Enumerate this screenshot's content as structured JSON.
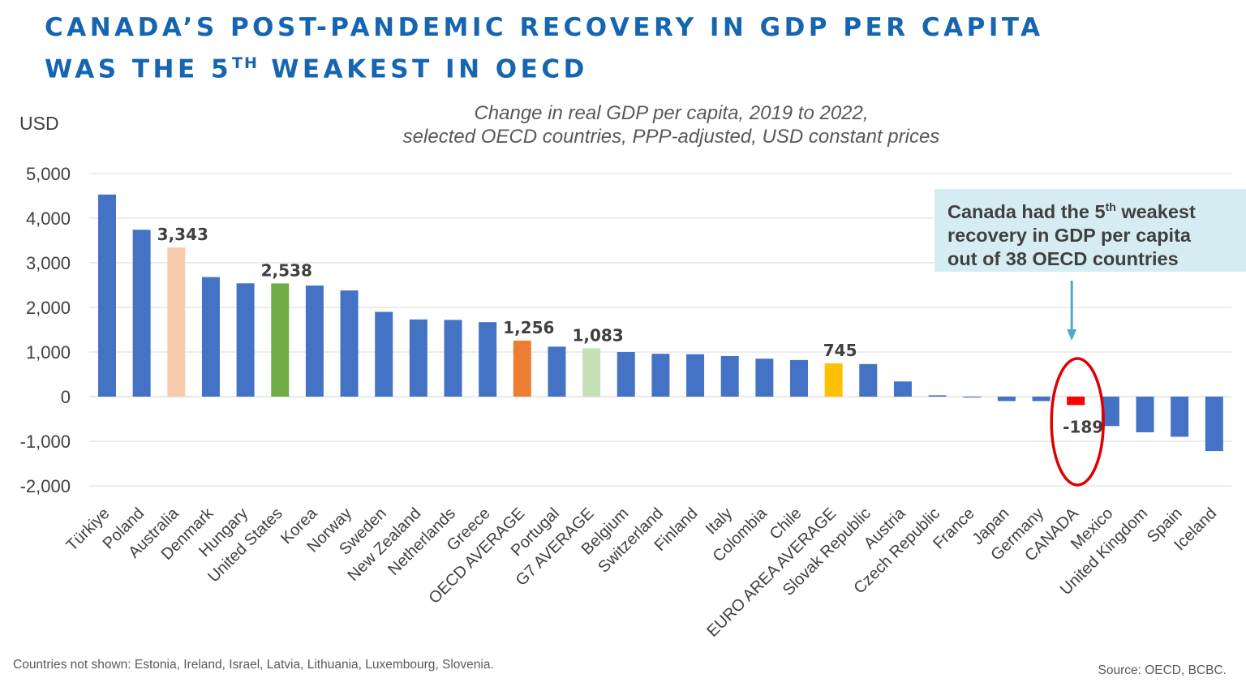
{
  "header": {
    "title_line1": "CANADA’S POST-PANDEMIC RECOVERY IN GDP PER CAPITA",
    "title_line2_pre": "WAS THE 5",
    "title_line2_sup": "TH",
    "title_line2_post": " WEAKEST IN OECD"
  },
  "chart_data": {
    "type": "bar",
    "title": "",
    "subtitle_line1": "Change in real GDP per capita, 2019 to 2022,",
    "subtitle_line2": "selected OECD countries, PPP-adjusted, USD constant prices",
    "ylabel": "USD",
    "xlabel": "",
    "ylim": [
      -2000,
      5000
    ],
    "yticks": [
      5000,
      4000,
      3000,
      2000,
      1000,
      0,
      -1000,
      -2000
    ],
    "ytick_labels": [
      "5,000",
      "4,000",
      "3,000",
      "2,000",
      "1,000",
      "0",
      "-1,000",
      "-2,000"
    ],
    "grid": true,
    "categories": [
      "Türkiye",
      "Poland",
      "Australia",
      "Denmark",
      "Hungary",
      "United States",
      "Korea",
      "Norway",
      "Sweden",
      "New Zealand",
      "Netherlands",
      "Greece",
      "OECD AVERAGE",
      "Portugal",
      "G7 AVERAGE",
      "Belgium",
      "Switzerland",
      "Finland",
      "Italy",
      "Colombia",
      "Chile",
      "EURO AREA AVERAGE",
      "Slovak Republic",
      "Austria",
      "Czech Republic",
      "France",
      "Japan",
      "Germany",
      "CANADA",
      "Mexico",
      "United Kingdom",
      "Spain",
      "Iceland"
    ],
    "values": [
      4530,
      3740,
      3343,
      2680,
      2540,
      2538,
      2490,
      2380,
      1900,
      1730,
      1720,
      1670,
      1256,
      1120,
      1083,
      1000,
      960,
      950,
      910,
      850,
      820,
      745,
      730,
      340,
      30,
      -20,
      -100,
      -100,
      -189,
      -660,
      -800,
      -900,
      -1220
    ],
    "colors": [
      "#4472c4",
      "#4472c4",
      "#f8cbad",
      "#4472c4",
      "#4472c4",
      "#70ad47",
      "#4472c4",
      "#4472c4",
      "#4472c4",
      "#4472c4",
      "#4472c4",
      "#4472c4",
      "#ed7d31",
      "#4472c4",
      "#c5e0b4",
      "#4472c4",
      "#4472c4",
      "#4472c4",
      "#4472c4",
      "#4472c4",
      "#4472c4",
      "#ffc000",
      "#4472c4",
      "#4472c4",
      "#4472c4",
      "#4472c4",
      "#4472c4",
      "#4472c4",
      "#ff0000",
      "#4472c4",
      "#4472c4",
      "#4472c4",
      "#4472c4"
    ],
    "data_labels": [
      {
        "category": "Australia",
        "text": "3,343"
      },
      {
        "category": "United States",
        "text": "2,538"
      },
      {
        "category": "OECD AVERAGE",
        "text": "1,256"
      },
      {
        "category": "G7 AVERAGE",
        "text": "1,083"
      },
      {
        "category": "EURO AREA AVERAGE",
        "text": "745"
      },
      {
        "category": "CANADA",
        "text": "-189"
      }
    ],
    "highlight": {
      "category": "CANADA",
      "shape": "ellipse",
      "color": "#e00000"
    },
    "annotation": {
      "line1_pre": "Canada had the 5",
      "line1_sup": "th",
      "line1_post": " weakest",
      "line2": "recovery in GDP per capita",
      "line3": "out of 38 OECD countries",
      "background": "#d6ecf3",
      "arrow_color": "#4bacc6",
      "target": "CANADA"
    }
  },
  "footer": {
    "note": "Countries not shown: Estonia, Ireland, Israel, Latvia, Lithuania, Luxembourg, Slovenia.",
    "source": "Source: OECD, BCBC."
  }
}
